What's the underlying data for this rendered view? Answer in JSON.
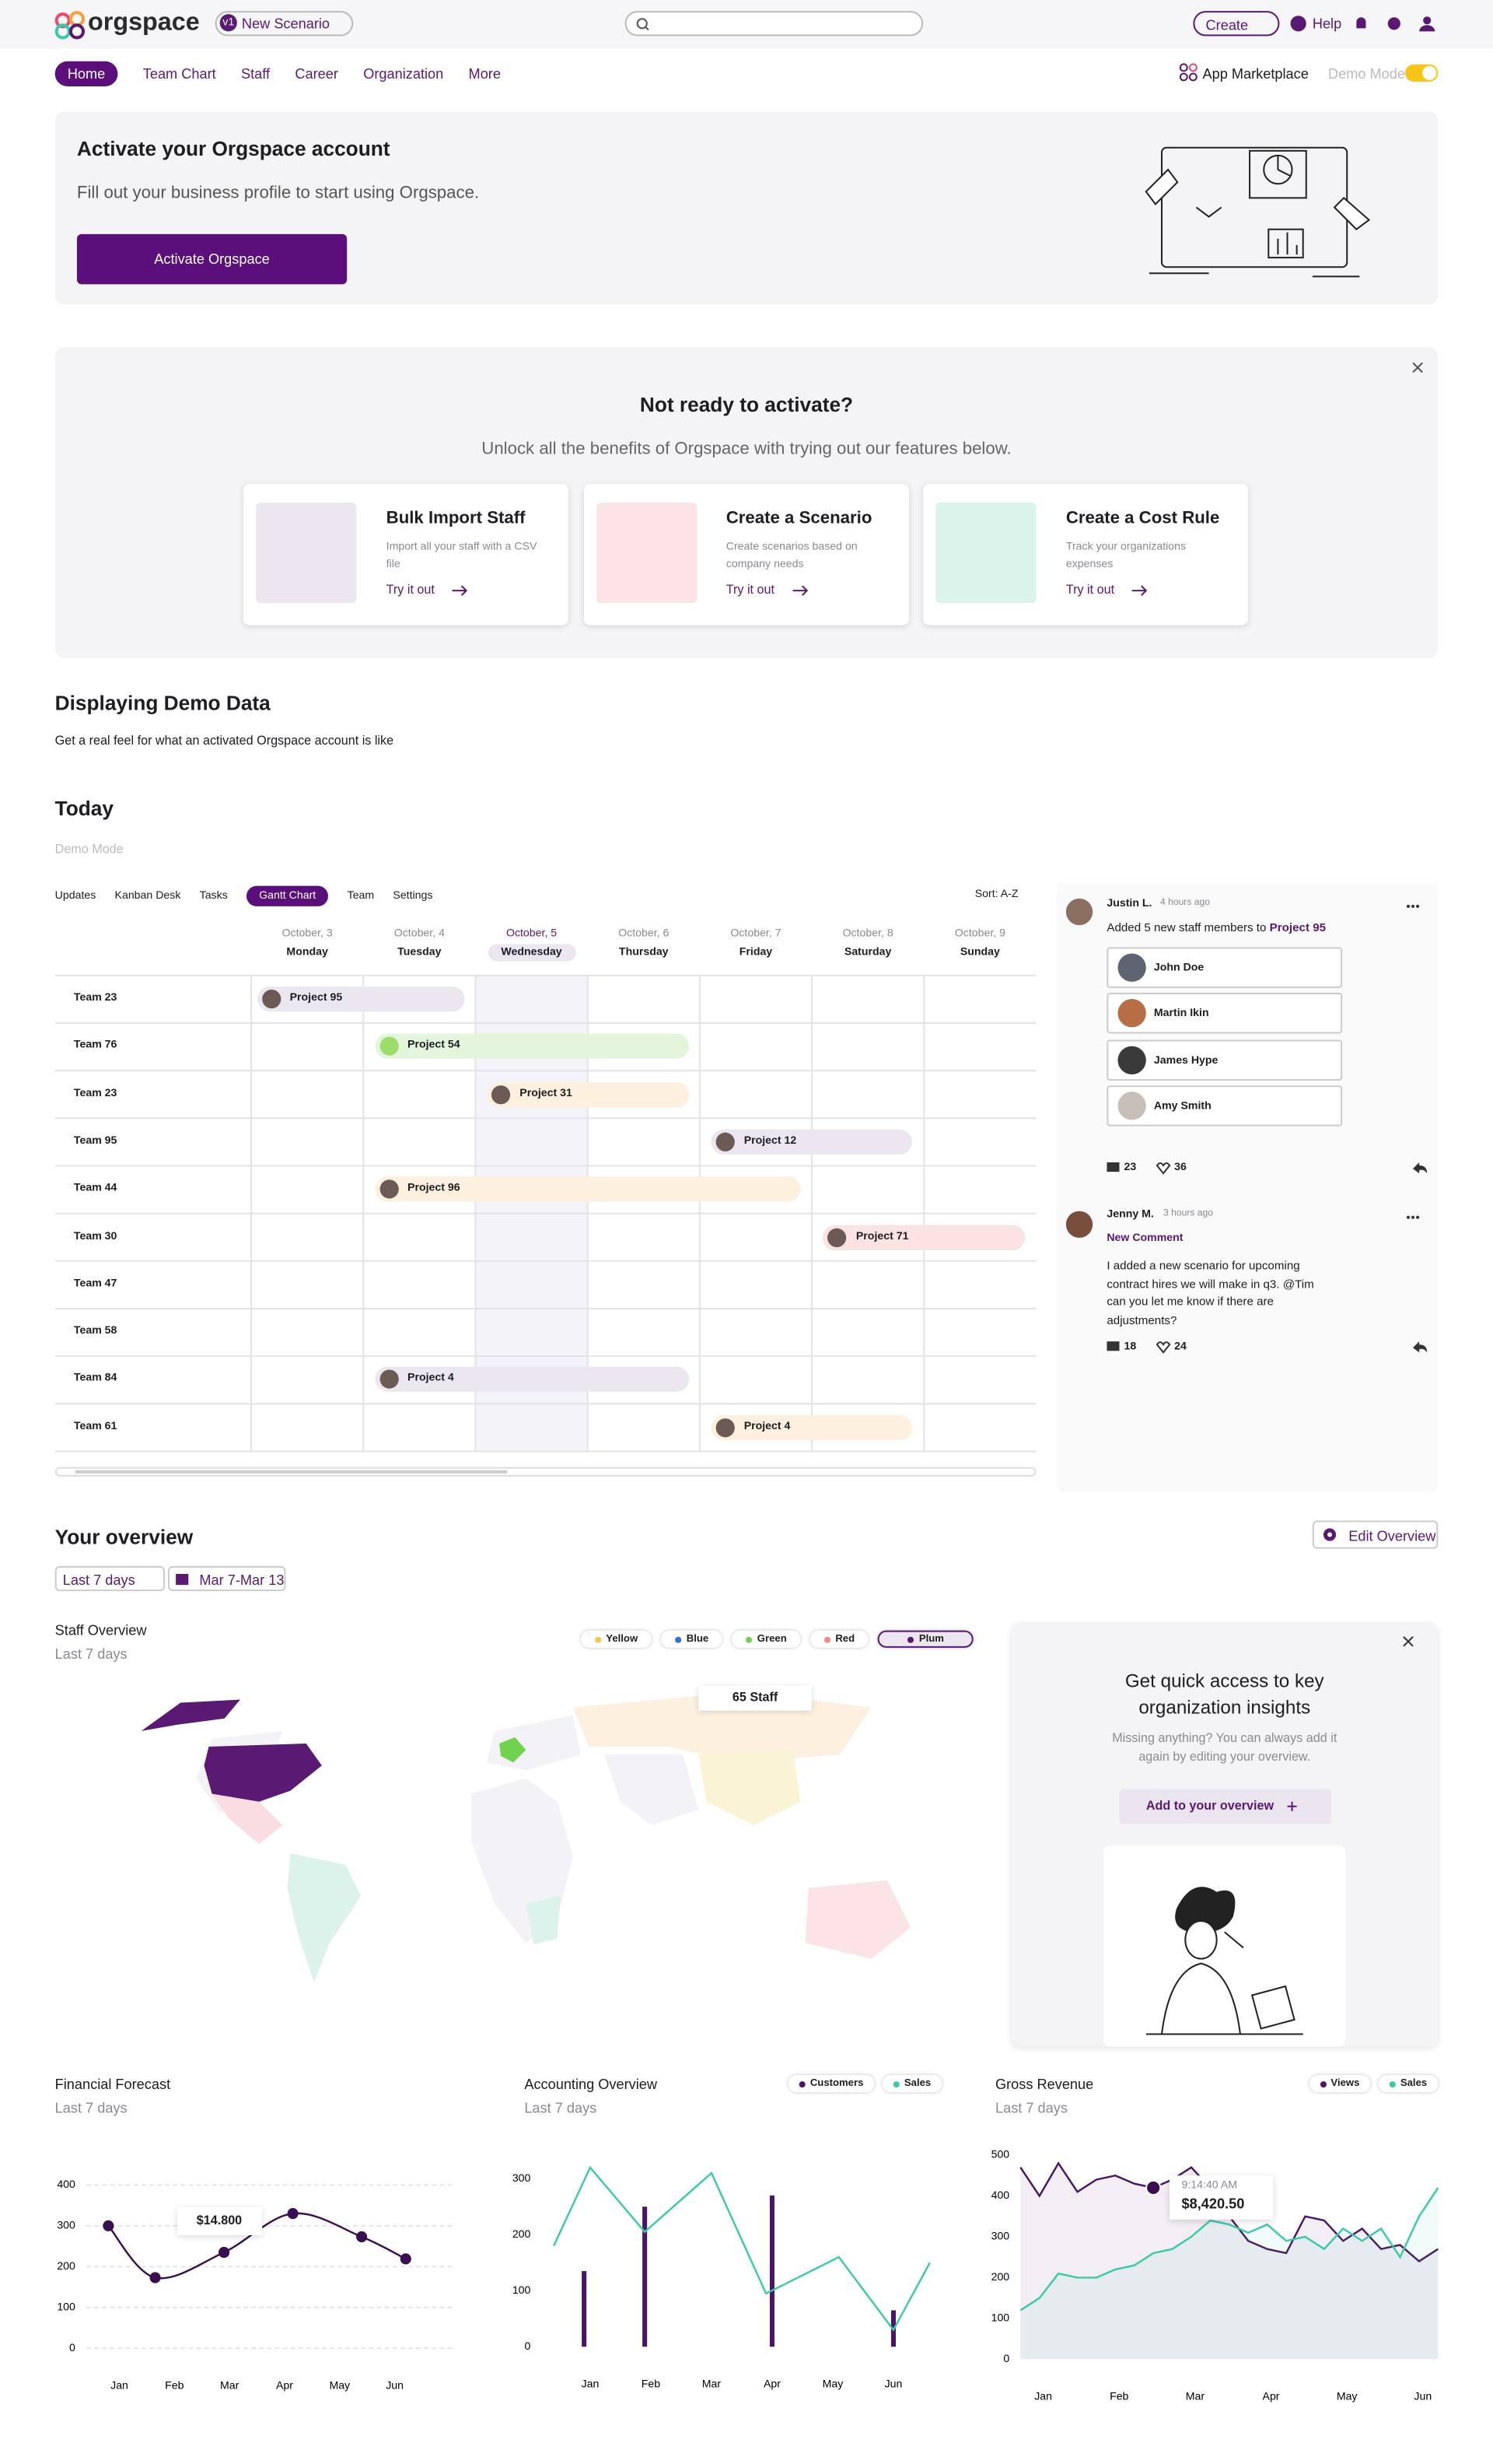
{
  "nav": {
    "brand": "orgspace",
    "badge": "v1",
    "scenario": "New Scenario",
    "create": "Create",
    "help": "Help",
    "tabs": [
      {
        "label": "Home",
        "active": true
      },
      {
        "label": "Team Chart"
      },
      {
        "label": "Staff"
      },
      {
        "label": "Career"
      },
      {
        "label": "Organization"
      },
      {
        "label": "More"
      }
    ],
    "marketplace": "App Marketplace",
    "demo_mode": "Demo Mode"
  },
  "activate": {
    "title": "Activate your Orgspace account",
    "text": "Fill out your business profile to start using Orgspace.",
    "button": "Activate Orgspace"
  },
  "promo": {
    "title": "Not ready to activate?",
    "subtitle": "Unlock all the benefits of Orgspace with trying out our features below.",
    "cards": [
      {
        "title": "Bulk Import Staff",
        "text": "Import all your staff with a CSV file",
        "link": "Try it out",
        "color": "#ece6f0"
      },
      {
        "title": "Create a Scenario",
        "text": "Create scenarios based on company needs",
        "link": "Try it out",
        "color": "#fbe3e6"
      },
      {
        "title": "Create a Cost Rule",
        "text": "Track your organizations expenses",
        "link": "Try it out",
        "color": "#dcf3ec"
      }
    ]
  },
  "demo": {
    "title": "Displaying Demo Data",
    "text": "Get a real feel for what an activated Orgspace account is like"
  },
  "today": {
    "title": "Today",
    "subtitle": "Demo Mode",
    "tabs": [
      {
        "label": "Updates"
      },
      {
        "label": "Kanban Desk"
      },
      {
        "label": "Tasks"
      },
      {
        "label": "Gantt Chart",
        "active": true
      },
      {
        "label": "Team"
      },
      {
        "label": "Settings"
      }
    ],
    "sort": "Sort: A-Z",
    "days": [
      {
        "date": "October, 3",
        "day": "Monday"
      },
      {
        "date": "October, 4",
        "day": "Tuesday"
      },
      {
        "date": "October, 5",
        "day": "Wednesday",
        "active": true
      },
      {
        "date": "October, 6",
        "day": "Thursday"
      },
      {
        "date": "October, 7",
        "day": "Friday"
      },
      {
        "date": "October, 8",
        "day": "Saturday"
      },
      {
        "date": "October, 9",
        "day": "Sunday"
      }
    ],
    "rows": [
      {
        "team": "Team 23",
        "project": "Project 95",
        "start": 0.05,
        "end": 1.9,
        "color": "#ece6f0"
      },
      {
        "team": "Team 76",
        "project": "Project 54",
        "start": 1.1,
        "end": 3.9,
        "color": "#e3f5dc"
      },
      {
        "team": "Team 23",
        "project": "Project 31",
        "start": 2.1,
        "end": 3.9,
        "color": "#fdf0df"
      },
      {
        "team": "Team 95",
        "project": "Project 12",
        "start": 4.1,
        "end": 5.9,
        "color": "#ece6f0"
      },
      {
        "team": "Team 44",
        "project": "Project 96",
        "start": 1.1,
        "end": 4.9,
        "color": "#fdf0df"
      },
      {
        "team": "Team 30",
        "project": "Project 71",
        "start": 5.1,
        "end": 6.9,
        "color": "#fbe3e3"
      },
      {
        "team": "Team 47"
      },
      {
        "team": "Team 58"
      },
      {
        "team": "Team 84",
        "project": "Project 4",
        "start": 1.1,
        "end": 3.9,
        "color": "#ece6f0"
      },
      {
        "team": "Team 61",
        "project": "Project 4",
        "start": 4.1,
        "end": 5.9,
        "color": "#fdf0df"
      }
    ]
  },
  "comments": [
    {
      "author": "Justin L.",
      "time": "4 hours ago",
      "text": "Added 5 new staff members to",
      "link": "Project 95",
      "staff": [
        "John Doe",
        "Martin Ikin",
        "James Hype",
        "Amy Smith"
      ],
      "replies": 23,
      "likes": 36
    },
    {
      "author": "Jenny M.",
      "time": "3 hours ago",
      "label": "New Comment",
      "text": "I added a new scenario for upcoming contract hires we will make in q3. @Tim can you let me know if there are adjustments?",
      "replies": 18,
      "likes": 24
    }
  ],
  "overview": {
    "title": "Your overview",
    "edit": "Edit Overview",
    "range": "Last 7 days",
    "dates": "Mar 7-Mar 13",
    "map": {
      "title": "Staff Overview",
      "subtitle": "Last 7 days",
      "annotation": "65 Staff",
      "legend": [
        {
          "name": "Yellow",
          "color": "#f2c94c"
        },
        {
          "name": "Blue",
          "color": "#2f6fde"
        },
        {
          "name": "Green",
          "color": "#6fd34f"
        },
        {
          "name": "Red",
          "color": "#f08a8a"
        },
        {
          "name": "Plum",
          "color": "#5a1a73",
          "active": true
        }
      ]
    },
    "insight": {
      "title": "Get quick access to key organization insights",
      "text": "Missing anything? You can always add it again by editing your overview.",
      "button": "Add to your overview"
    }
  },
  "chart_data": [
    {
      "type": "line",
      "title": "Financial Forecast",
      "subtitle": "Last 7 days",
      "smooth": true,
      "grid": true,
      "xlim": [
        -0.6,
        6.1
      ],
      "xticks": [
        {
          "value": 0,
          "label": "Jan"
        },
        {
          "value": 1,
          "label": "Feb"
        },
        {
          "value": 2,
          "label": "Mar"
        },
        {
          "value": 3,
          "label": "Apr"
        },
        {
          "value": 4,
          "label": "May"
        },
        {
          "value": 5,
          "label": "Jun"
        }
      ],
      "ylim": [
        0,
        400
      ],
      "yticks": [
        0,
        100,
        200,
        300,
        400
      ],
      "annotation": "$14.800",
      "series": [
        {
          "name": null,
          "color": "#3a0f4f",
          "x": [
            -0.2,
            0.65,
            1.9,
            3.15,
            4.4,
            5.2
          ],
          "values": [
            300,
            173,
            235,
            330,
            273,
            219
          ]
        }
      ]
    },
    {
      "type": "line",
      "title": "Accounting Overview",
      "subtitle": "Last 7 days",
      "grid": false,
      "xlim": [
        -0.8,
        5.8
      ],
      "xticks": [
        {
          "value": 0,
          "label": "Jan"
        },
        {
          "value": 1,
          "label": "Feb"
        },
        {
          "value": 2,
          "label": "Mar"
        },
        {
          "value": 3,
          "label": "Apr"
        },
        {
          "value": 4,
          "label": "May"
        },
        {
          "value": 5,
          "label": "Jun"
        }
      ],
      "ylim": [
        0,
        300
      ],
      "yticks": [
        0,
        100,
        200,
        300
      ],
      "series": [
        {
          "name": "Customers",
          "color": "#4a1566",
          "kind": "bar",
          "x": [
            -0.1,
            0.9,
            3.0,
            5.0
          ],
          "values": [
            135,
            250,
            270,
            65
          ]
        },
        {
          "name": "Sales",
          "color": "#3cc9a6",
          "x": [
            -0.6,
            0,
            0.9,
            2,
            2.9,
            4.1,
            5,
            5.6
          ],
          "values": [
            180,
            320,
            205,
            310,
            95,
            160,
            30,
            150
          ]
        }
      ]
    },
    {
      "type": "line",
      "title": "Gross Revenue",
      "subtitle": "Last 7 days",
      "grid": false,
      "area": true,
      "xlim": [
        -0.3,
        5.2
      ],
      "xticks": [
        {
          "value": 0,
          "label": "Jan"
        },
        {
          "value": 1,
          "label": "Feb"
        },
        {
          "value": 2,
          "label": "Mar"
        },
        {
          "value": 3,
          "label": "Apr"
        },
        {
          "value": 4,
          "label": "May"
        },
        {
          "value": 5,
          "label": "Jun"
        }
      ],
      "ylim": [
        0,
        500
      ],
      "yticks": [
        0,
        100,
        200,
        300,
        400,
        500
      ],
      "annotation": {
        "time": "9:14:40 AM",
        "value": "$8,420.50",
        "series": 0,
        "index": 7
      },
      "series": [
        {
          "name": "Views",
          "color": "#4a1566",
          "x": [
            -0.3,
            -0.05,
            0.2,
            0.45,
            0.7,
            0.95,
            1.2,
            1.45,
            1.7,
            1.95,
            2.2,
            2.45,
            2.7,
            2.95,
            3.2,
            3.45,
            3.7,
            3.95,
            4.2,
            4.45,
            4.7,
            4.95,
            5.2
          ],
          "values": [
            470,
            400,
            480,
            410,
            440,
            450,
            430,
            420,
            440,
            470,
            420,
            350,
            290,
            270,
            260,
            350,
            340,
            290,
            320,
            270,
            280,
            240,
            270
          ]
        },
        {
          "name": "Sales",
          "color": "#3cc9a6",
          "x": [
            -0.3,
            -0.05,
            0.2,
            0.45,
            0.7,
            0.95,
            1.2,
            1.45,
            1.7,
            1.95,
            2.2,
            2.45,
            2.7,
            2.95,
            3.2,
            3.45,
            3.7,
            3.95,
            4.2,
            4.45,
            4.7,
            4.95,
            5.2
          ],
          "values": [
            120,
            150,
            210,
            200,
            200,
            220,
            230,
            260,
            270,
            300,
            340,
            330,
            310,
            330,
            290,
            300,
            270,
            320,
            290,
            320,
            250,
            350,
            420
          ]
        }
      ]
    }
  ]
}
